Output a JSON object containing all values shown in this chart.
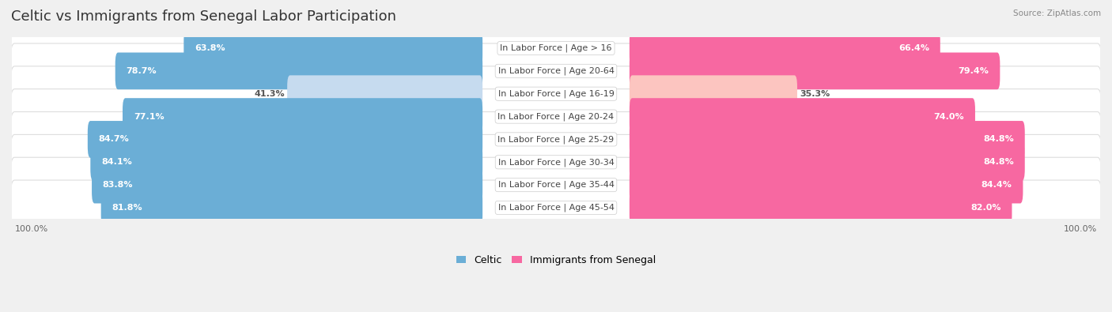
{
  "title": "Celtic vs Immigrants from Senegal Labor Participation",
  "source": "Source: ZipAtlas.com",
  "categories": [
    "In Labor Force | Age > 16",
    "In Labor Force | Age 20-64",
    "In Labor Force | Age 16-19",
    "In Labor Force | Age 20-24",
    "In Labor Force | Age 25-29",
    "In Labor Force | Age 30-34",
    "In Labor Force | Age 35-44",
    "In Labor Force | Age 45-54"
  ],
  "celtic_values": [
    63.8,
    78.7,
    41.3,
    77.1,
    84.7,
    84.1,
    83.8,
    81.8
  ],
  "senegal_values": [
    66.4,
    79.4,
    35.3,
    74.0,
    84.8,
    84.8,
    84.4,
    82.0
  ],
  "celtic_color": "#6BAED6",
  "senegal_color": "#F768A1",
  "celtic_color_light": "#C6DBEF",
  "senegal_color_light": "#FCC5C0",
  "background_color": "#f0f0f0",
  "row_bg_color": "#ffffff",
  "row_border_color": "#dddddd",
  "max_val": 100.0,
  "title_fontsize": 13,
  "label_fontsize": 8,
  "value_fontsize": 8,
  "legend_fontsize": 9
}
